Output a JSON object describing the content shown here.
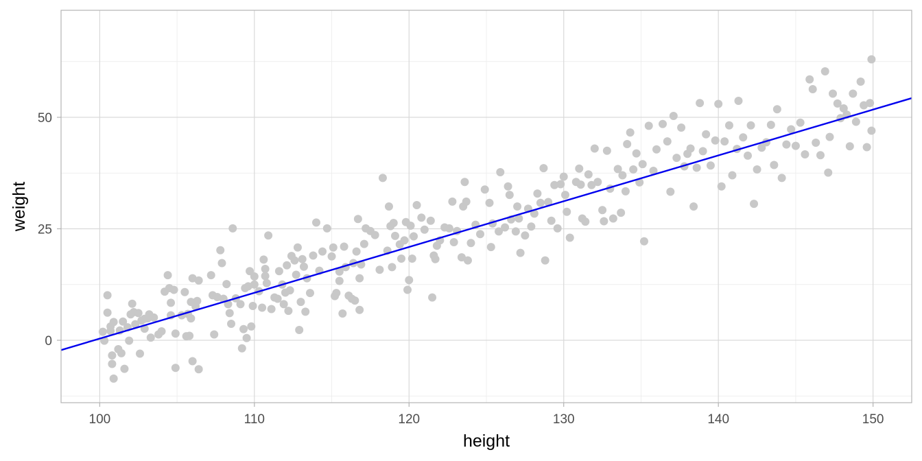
{
  "chart_data": {
    "type": "scatter",
    "title": "",
    "xlabel": "height",
    "ylabel": "weight",
    "xlim": [
      97.5,
      152.5
    ],
    "ylim": [
      -14,
      74
    ],
    "x_ticks": [
      100,
      110,
      120,
      130,
      140,
      150
    ],
    "y_ticks": [
      0,
      25,
      50
    ],
    "grid": true,
    "point_color": "#c8c8c8",
    "line_color": "#0000ee",
    "panel_border_color": "#b3b3b3",
    "grid_major_color": "#d9d9d9",
    "grid_minor_color": "#ebebeb",
    "fit_line": {
      "x": [
        97.5,
        152.5
      ],
      "y": [
        -2.2,
        54.3
      ]
    },
    "points": [
      [
        100.2,
        1.9
      ],
      [
        100.3,
        -0.1
      ],
      [
        100.5,
        10.1
      ],
      [
        100.5,
        6.2
      ],
      [
        100.7,
        2.1
      ],
      [
        100.7,
        3.1
      ],
      [
        100.8,
        -5.3
      ],
      [
        100.8,
        -3.4
      ],
      [
        100.9,
        -8.6
      ],
      [
        100.9,
        4.1
      ],
      [
        101.2,
        -2.0
      ],
      [
        101.3,
        2.2
      ],
      [
        101.4,
        -2.9
      ],
      [
        101.5,
        4.2
      ],
      [
        101.6,
        -6.4
      ],
      [
        101.8,
        2.9
      ],
      [
        101.9,
        -0.1
      ],
      [
        102.0,
        5.8
      ],
      [
        102.1,
        8.2
      ],
      [
        102.2,
        6.3
      ],
      [
        102.3,
        3.6
      ],
      [
        102.5,
        6.1
      ],
      [
        102.6,
        -3.0
      ],
      [
        102.7,
        4.4
      ],
      [
        102.9,
        4.8
      ],
      [
        102.9,
        2.6
      ],
      [
        103.1,
        4.9
      ],
      [
        103.2,
        5.8
      ],
      [
        103.3,
        0.6
      ],
      [
        103.5,
        5.1
      ],
      [
        103.8,
        1.3
      ],
      [
        104.0,
        2.0
      ],
      [
        104.2,
        10.9
      ],
      [
        104.4,
        14.6
      ],
      [
        104.5,
        11.7
      ],
      [
        104.6,
        5.6
      ],
      [
        104.6,
        8.4
      ],
      [
        104.8,
        11.3
      ],
      [
        104.9,
        1.5
      ],
      [
        104.9,
        -6.2
      ],
      [
        105.3,
        5.6
      ],
      [
        105.5,
        10.8
      ],
      [
        105.6,
        0.9
      ],
      [
        105.7,
        5.9
      ],
      [
        105.8,
        1.0
      ],
      [
        105.9,
        8.6
      ],
      [
        105.9,
        4.9
      ],
      [
        106.0,
        13.9
      ],
      [
        106.0,
        -4.7
      ],
      [
        106.2,
        7.6
      ],
      [
        106.3,
        8.8
      ],
      [
        106.4,
        -6.5
      ],
      [
        106.4,
        13.4
      ],
      [
        107.2,
        14.6
      ],
      [
        107.3,
        10.1
      ],
      [
        107.4,
        1.3
      ],
      [
        107.6,
        9.7
      ],
      [
        107.8,
        20.2
      ],
      [
        107.9,
        17.3
      ],
      [
        108.0,
        9.3
      ],
      [
        108.2,
        12.6
      ],
      [
        108.3,
        8.1
      ],
      [
        108.4,
        6.1
      ],
      [
        108.5,
        3.7
      ],
      [
        108.6,
        25.1
      ],
      [
        108.8,
        9.4
      ],
      [
        109.1,
        8.1
      ],
      [
        109.2,
        -1.8
      ],
      [
        109.3,
        2.5
      ],
      [
        109.4,
        11.7
      ],
      [
        109.5,
        0.5
      ],
      [
        109.6,
        12.1
      ],
      [
        109.7,
        15.5
      ],
      [
        109.8,
        3.1
      ],
      [
        109.9,
        7.7
      ],
      [
        110.0,
        12.5
      ],
      [
        110.0,
        14.3
      ],
      [
        110.3,
        11.0
      ],
      [
        110.5,
        7.3
      ],
      [
        110.6,
        18.1
      ],
      [
        110.7,
        16.0
      ],
      [
        110.7,
        14.4
      ],
      [
        110.8,
        12.8
      ],
      [
        110.9,
        23.5
      ],
      [
        111.1,
        7.0
      ],
      [
        111.3,
        9.6
      ],
      [
        111.5,
        9.3
      ],
      [
        111.6,
        15.5
      ],
      [
        111.8,
        12.5
      ],
      [
        111.9,
        8.1
      ],
      [
        112.0,
        10.7
      ],
      [
        112.1,
        16.8
      ],
      [
        112.2,
        6.6
      ],
      [
        112.3,
        11.2
      ],
      [
        112.4,
        18.9
      ],
      [
        112.6,
        17.9
      ],
      [
        112.7,
        14.7
      ],
      [
        112.8,
        20.8
      ],
      [
        112.9,
        2.3
      ],
      [
        113.0,
        8.6
      ],
      [
        113.1,
        18.2
      ],
      [
        113.2,
        16.5
      ],
      [
        113.3,
        6.4
      ],
      [
        113.4,
        13.9
      ],
      [
        113.6,
        10.6
      ],
      [
        113.8,
        19.0
      ],
      [
        114.0,
        26.4
      ],
      [
        114.2,
        15.6
      ],
      [
        114.4,
        19.9
      ],
      [
        114.7,
        25.1
      ],
      [
        115.0,
        18.8
      ],
      [
        115.1,
        20.8
      ],
      [
        115.2,
        9.9
      ],
      [
        115.3,
        10.6
      ],
      [
        115.5,
        15.4
      ],
      [
        115.5,
        13.3
      ],
      [
        115.7,
        6.0
      ],
      [
        115.8,
        21.0
      ],
      [
        115.9,
        16.4
      ],
      [
        116.1,
        10.0
      ],
      [
        116.3,
        9.3
      ],
      [
        116.4,
        17.3
      ],
      [
        116.5,
        8.9
      ],
      [
        116.6,
        19.9
      ],
      [
        116.7,
        27.2
      ],
      [
        116.8,
        6.8
      ],
      [
        116.8,
        13.9
      ],
      [
        116.9,
        17.0
      ],
      [
        117.1,
        21.6
      ],
      [
        117.2,
        25.1
      ],
      [
        117.5,
        24.5
      ],
      [
        117.8,
        23.6
      ],
      [
        118.1,
        15.8
      ],
      [
        118.3,
        36.4
      ],
      [
        118.6,
        20.1
      ],
      [
        118.7,
        30.0
      ],
      [
        118.8,
        25.6
      ],
      [
        118.9,
        16.4
      ],
      [
        119.0,
        26.3
      ],
      [
        119.1,
        23.4
      ],
      [
        119.4,
        21.5
      ],
      [
        119.5,
        18.3
      ],
      [
        119.7,
        22.4
      ],
      [
        119.8,
        26.5
      ],
      [
        119.9,
        11.3
      ],
      [
        120.0,
        13.5
      ],
      [
        120.1,
        25.7
      ],
      [
        120.2,
        18.3
      ],
      [
        120.3,
        23.3
      ],
      [
        120.5,
        30.3
      ],
      [
        120.8,
        27.5
      ],
      [
        121.0,
        24.8
      ],
      [
        121.4,
        26.8
      ],
      [
        121.5,
        9.6
      ],
      [
        121.6,
        19.0
      ],
      [
        121.7,
        18.2
      ],
      [
        121.8,
        21.2
      ],
      [
        122.0,
        22.4
      ],
      [
        122.3,
        25.3
      ],
      [
        122.6,
        25.1
      ],
      [
        122.8,
        31.1
      ],
      [
        122.9,
        22.0
      ],
      [
        123.1,
        24.5
      ],
      [
        123.4,
        18.6
      ],
      [
        123.5,
        30.0
      ],
      [
        123.6,
        35.5
      ],
      [
        123.7,
        31.1
      ],
      [
        123.8,
        17.9
      ],
      [
        124.0,
        21.8
      ],
      [
        124.3,
        25.9
      ],
      [
        124.6,
        23.8
      ],
      [
        124.9,
        33.8
      ],
      [
        125.2,
        30.8
      ],
      [
        125.3,
        20.9
      ],
      [
        125.4,
        26.2
      ],
      [
        125.8,
        24.4
      ],
      [
        125.9,
        37.7
      ],
      [
        126.2,
        25.3
      ],
      [
        126.4,
        34.5
      ],
      [
        126.5,
        32.6
      ],
      [
        126.6,
        27.1
      ],
      [
        126.9,
        24.4
      ],
      [
        127.0,
        30.0
      ],
      [
        127.1,
        27.3
      ],
      [
        127.2,
        19.6
      ],
      [
        127.5,
        23.5
      ],
      [
        127.7,
        29.5
      ],
      [
        127.9,
        25.5
      ],
      [
        128.1,
        28.4
      ],
      [
        128.3,
        32.9
      ],
      [
        128.5,
        30.8
      ],
      [
        128.7,
        38.6
      ],
      [
        128.8,
        17.9
      ],
      [
        129.0,
        31.0
      ],
      [
        129.2,
        26.8
      ],
      [
        129.4,
        34.8
      ],
      [
        129.6,
        25.1
      ],
      [
        129.8,
        35.0
      ],
      [
        130.0,
        36.7
      ],
      [
        130.1,
        32.6
      ],
      [
        130.2,
        28.8
      ],
      [
        130.4,
        23.0
      ],
      [
        130.8,
        35.5
      ],
      [
        131.0,
        38.5
      ],
      [
        131.1,
        34.9
      ],
      [
        131.2,
        27.3
      ],
      [
        131.4,
        26.6
      ],
      [
        131.6,
        37.2
      ],
      [
        131.8,
        34.8
      ],
      [
        132.0,
        43.0
      ],
      [
        132.2,
        35.5
      ],
      [
        132.5,
        29.2
      ],
      [
        132.6,
        26.7
      ],
      [
        132.8,
        42.5
      ],
      [
        133.0,
        34.0
      ],
      [
        133.2,
        27.3
      ],
      [
        133.5,
        38.4
      ],
      [
        133.7,
        28.6
      ],
      [
        133.8,
        37.0
      ],
      [
        134.0,
        33.4
      ],
      [
        134.1,
        44.0
      ],
      [
        134.3,
        46.6
      ],
      [
        134.5,
        38.3
      ],
      [
        134.7,
        41.9
      ],
      [
        134.9,
        35.4
      ],
      [
        135.1,
        39.5
      ],
      [
        135.2,
        22.2
      ],
      [
        135.5,
        48.1
      ],
      [
        135.8,
        38.0
      ],
      [
        136.0,
        42.8
      ],
      [
        136.4,
        48.5
      ],
      [
        136.7,
        44.6
      ],
      [
        136.9,
        33.3
      ],
      [
        137.1,
        50.3
      ],
      [
        137.3,
        40.9
      ],
      [
        137.6,
        47.7
      ],
      [
        137.8,
        39.0
      ],
      [
        138.0,
        41.8
      ],
      [
        138.2,
        43.0
      ],
      [
        138.4,
        30.0
      ],
      [
        138.6,
        38.7
      ],
      [
        138.8,
        53.2
      ],
      [
        139.0,
        42.4
      ],
      [
        139.2,
        46.2
      ],
      [
        139.5,
        39.2
      ],
      [
        139.8,
        44.8
      ],
      [
        140.0,
        53.0
      ],
      [
        140.2,
        34.5
      ],
      [
        140.4,
        44.6
      ],
      [
        140.7,
        48.2
      ],
      [
        140.9,
        37.0
      ],
      [
        141.2,
        42.9
      ],
      [
        141.3,
        53.7
      ],
      [
        141.6,
        45.5
      ],
      [
        141.9,
        41.4
      ],
      [
        142.1,
        48.2
      ],
      [
        142.3,
        30.6
      ],
      [
        142.5,
        38.3
      ],
      [
        142.8,
        43.2
      ],
      [
        143.1,
        44.4
      ],
      [
        143.4,
        48.3
      ],
      [
        143.6,
        39.3
      ],
      [
        143.8,
        51.8
      ],
      [
        144.1,
        36.4
      ],
      [
        144.4,
        43.9
      ],
      [
        144.7,
        47.3
      ],
      [
        145.0,
        43.6
      ],
      [
        145.3,
        48.8
      ],
      [
        145.6,
        41.7
      ],
      [
        145.9,
        58.5
      ],
      [
        146.1,
        56.3
      ],
      [
        146.3,
        44.3
      ],
      [
        146.6,
        41.5
      ],
      [
        146.9,
        60.3
      ],
      [
        147.1,
        37.6
      ],
      [
        147.2,
        45.6
      ],
      [
        147.4,
        55.3
      ],
      [
        147.7,
        53.1
      ],
      [
        147.9,
        49.8
      ],
      [
        148.1,
        52.0
      ],
      [
        148.3,
        50.6
      ],
      [
        148.5,
        43.5
      ],
      [
        148.7,
        55.3
      ],
      [
        148.9,
        49.0
      ],
      [
        149.2,
        58.0
      ],
      [
        149.4,
        52.7
      ],
      [
        149.6,
        43.3
      ],
      [
        149.8,
        53.2
      ],
      [
        149.9,
        63.0
      ],
      [
        149.9,
        47.0
      ]
    ]
  }
}
